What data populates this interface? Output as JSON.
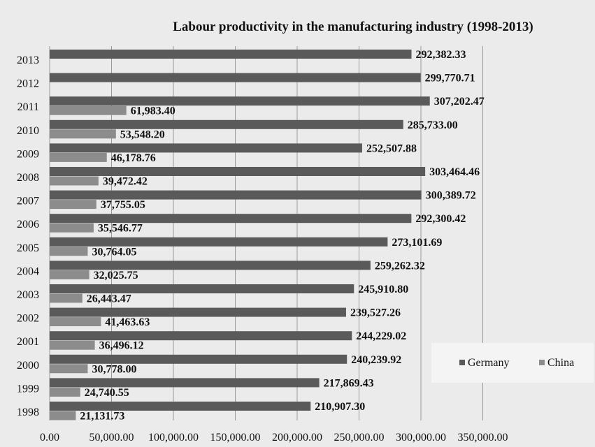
{
  "chart_data": {
    "type": "bar",
    "orientation": "horizontal",
    "title": "Labour productivity in the manufacturing industry (1998-2013)",
    "xlabel": "",
    "ylabel": "",
    "categories": [
      "1998",
      "1999",
      "2000",
      "2001",
      "2002",
      "2003",
      "2004",
      "2005",
      "2006",
      "2007",
      "2008",
      "2009",
      "2010",
      "2011",
      "2012",
      "2013"
    ],
    "series": [
      {
        "name": "Germany",
        "color": "#5a5a5a",
        "values": [
          210907.3,
          217869.43,
          240239.92,
          244229.02,
          239527.26,
          245910.8,
          259262.32,
          273101.69,
          292300.42,
          300389.72,
          303464.46,
          252507.88,
          285733.0,
          307202.47,
          299770.71,
          292382.33
        ],
        "labels": [
          "210,907.30",
          "217,869.43",
          "240,239.92",
          "244,229.02",
          "239,527.26",
          "245,910.80",
          "259,262.32",
          "273,101.69",
          "292,300.42",
          "300,389.72",
          "303,464.46",
          "252,507.88",
          "285,733.00",
          "307,202.47",
          "299,770.71",
          "292,382.33"
        ]
      },
      {
        "name": "China",
        "color": "#8c8c8c",
        "values": [
          21131.73,
          24740.55,
          30778.0,
          36496.12,
          41463.63,
          26443.47,
          32025.75,
          30764.05,
          35546.77,
          37755.05,
          39472.42,
          46178.76,
          53548.2,
          61983.4,
          null,
          null
        ],
        "labels": [
          "21,131.73",
          "24,740.55",
          "30,778.00",
          "36,496.12",
          "41,463.63",
          "26,443.47",
          "32,025.75",
          "30,764.05",
          "35,546.77",
          "37,755.05",
          "39,472.42",
          "46,178.76",
          "53,548.20",
          "61,983.40",
          "",
          ""
        ]
      }
    ],
    "xlim": [
      0,
      350000
    ],
    "xticks": [
      0,
      50000,
      100000,
      150000,
      200000,
      250000,
      300000,
      350000
    ],
    "xtick_labels": [
      "0.00",
      "50,000.00",
      "100,000.00",
      "150,000.00",
      "200,000.00",
      "250,000.00",
      "300,000.00",
      "350,000.00"
    ],
    "grid": true,
    "legend": {
      "placement": "right",
      "entries": [
        "Germany",
        "China"
      ]
    },
    "background": "#ebebeb"
  }
}
